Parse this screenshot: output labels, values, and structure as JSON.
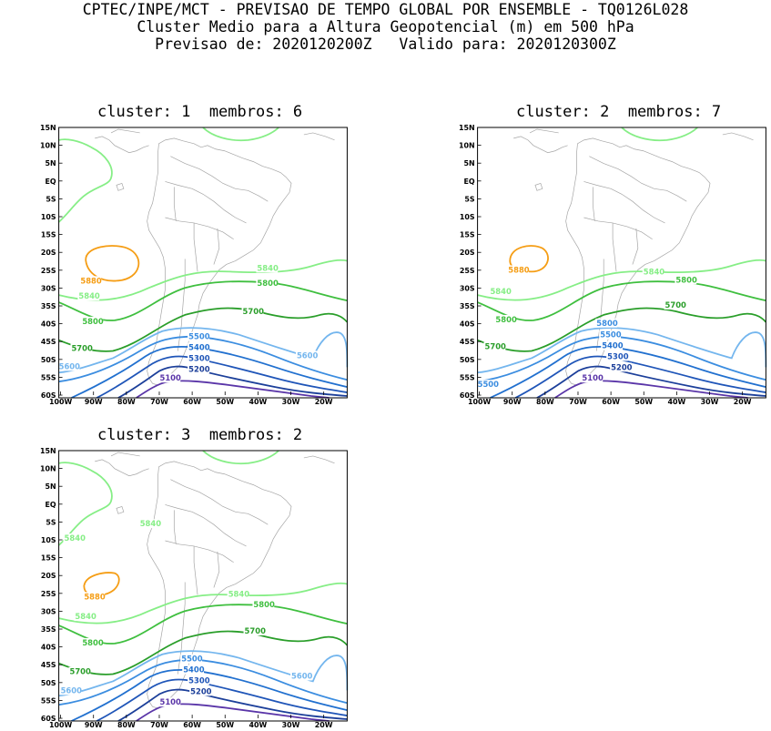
{
  "header": {
    "line1": "CPTEC/INPE/MCT - PREVISAO DE TEMPO GLOBAL POR ENSEMBLE - TQ0126L028",
    "line2": "Cluster Medio para a Altura Geopotencial (m) em 500 hPa",
    "line3": "Previsao de: 2020120200Z   Valido para: 2020120300Z"
  },
  "axes": {
    "y_labels": [
      "15N",
      "10N",
      "5N",
      "EQ",
      "5S",
      "10S",
      "15S",
      "20S",
      "25S",
      "30S",
      "35S",
      "40S",
      "45S",
      "50S",
      "55S",
      "60S"
    ],
    "x_labels": [
      "100W",
      "90W",
      "80W",
      "70W",
      "60W",
      "50W",
      "40W",
      "30W",
      "20W"
    ]
  },
  "colors": {
    "c5100": "#5a35a8",
    "c5200": "#1c3f9a",
    "c5300": "#1f55b8",
    "c5400": "#2170cf",
    "c5500": "#3b8de0",
    "c5600": "#74b6ee",
    "c5700": "#2a9e2a",
    "c5800": "#3fbf3f",
    "c5840": "#86ee86",
    "c5880": "#f59d14",
    "coast": "#a5a5a5"
  },
  "panels": [
    {
      "title": "cluster: 1  membros: 6",
      "labels": {
        "c5880": "5880",
        "c5840a": "5840",
        "c5840b": "5840",
        "c5800a": "5800",
        "c5800b": "5800",
        "c5700a": "5700",
        "c5700b": "5700",
        "c5600a": "5600",
        "c5600b": "5600",
        "c5500": "5500",
        "c5400": "5400",
        "c5300": "5300",
        "c5200": "5200",
        "c5100": "5100"
      }
    },
    {
      "title": "cluster: 2  membros: 7",
      "labels": {
        "c5880": "5880",
        "c5840a": "5840",
        "c5840b": "5840",
        "c5800a": "5800",
        "c5800b": "5800",
        "c5700a": "5700",
        "c5700b": "5700",
        "c5600a": "5800",
        "c5600b": "5500",
        "c5500": "5500",
        "c5400": "5400",
        "c5300": "5300",
        "c5200": "5200",
        "c5100": "5100"
      }
    },
    {
      "title": "cluster: 3  membros: 2",
      "labels": {
        "c5880": "5880",
        "c5840a": "5840",
        "c5840b": "5840",
        "c5840c": "5840",
        "c5840d": "5840",
        "c5800a": "5800",
        "c5800b": "5800",
        "c5700a": "5700",
        "c5700b": "5700",
        "c5600a": "5600",
        "c5600b": "5600",
        "c5500": "5500",
        "c5400": "5400",
        "c5300": "5300",
        "c5200": "5200",
        "c5100": "5100"
      }
    }
  ]
}
